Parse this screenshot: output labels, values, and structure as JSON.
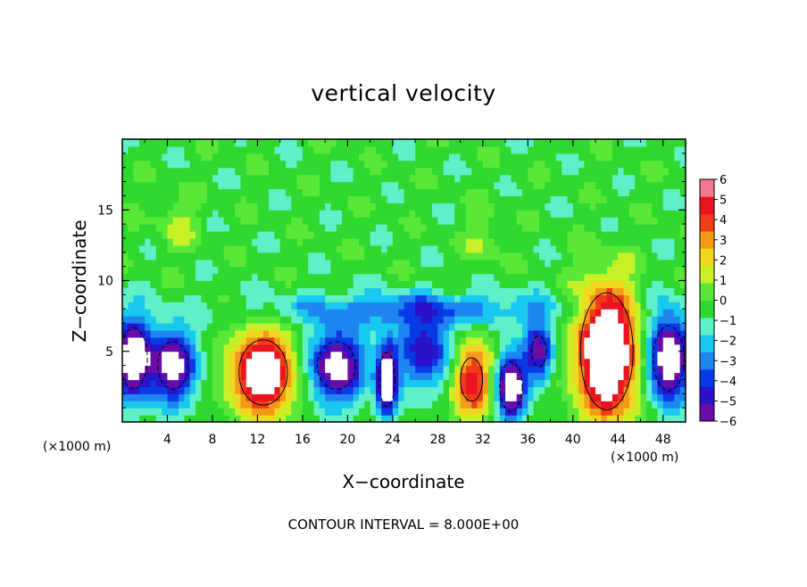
{
  "chart_data": {
    "type": "heatmap",
    "title": "vertical velocity",
    "xlabel": "X−coordinate",
    "ylabel": "Z−coordinate",
    "x_unit": "(×1000 m)",
    "y_unit": "(×1000 m)",
    "xlim": [
      0,
      50
    ],
    "ylim": [
      0,
      20
    ],
    "x_ticks": [
      4,
      8,
      12,
      16,
      20,
      24,
      28,
      32,
      36,
      40,
      44,
      48
    ],
    "x_tick_labels": [
      "4",
      "8",
      "12",
      "16",
      "20",
      "24",
      "28",
      "32",
      "36",
      "40",
      "44",
      "48"
    ],
    "y_ticks": [
      5,
      10,
      15
    ],
    "y_tick_labels": [
      "5",
      "10",
      "15"
    ],
    "colorbar": {
      "min": -6,
      "max": 6,
      "tick_labels": [
        "6",
        "5",
        "4",
        "3",
        "2",
        "1",
        "0",
        "−1",
        "−2",
        "−3",
        "−4",
        "−5",
        "−6"
      ],
      "colors": [
        "#6a0da8",
        "#2a12c8",
        "#0a3ae6",
        "#1e86f0",
        "#18c8ee",
        "#5ff0c8",
        "#2ed82e",
        "#5ae838",
        "#c8f026",
        "#f0d820",
        "#f59a18",
        "#f03c18",
        "#ea1420",
        "#f07890"
      ]
    },
    "background_color": "#3ee03a",
    "features": [
      {
        "kind": "updraft",
        "x": 12.5,
        "z": 3.5,
        "peak": 8,
        "rx": 2.8,
        "rz": 3.0
      },
      {
        "kind": "updraft",
        "x": 31,
        "z": 3.0,
        "peak": 6,
        "rx": 1.8,
        "rz": 2.8
      },
      {
        "kind": "updraft",
        "x": 43,
        "z": 5.0,
        "peak": 10,
        "rx": 2.6,
        "rz": 4.6
      },
      {
        "kind": "updraft",
        "x": 5,
        "z": 14,
        "peak": 1.5,
        "rx": 2.0,
        "rz": 2.0
      },
      {
        "kind": "updraft",
        "x": 32,
        "z": 13,
        "peak": 1.5,
        "rx": 1.5,
        "rz": 2.0
      },
      {
        "kind": "downdraft",
        "x": 1,
        "z": 4.5,
        "peak": -8,
        "rx": 1.6,
        "rz": 2.8
      },
      {
        "kind": "downdraft",
        "x": 4.5,
        "z": 4.0,
        "peak": -7,
        "rx": 2.0,
        "rz": 2.5
      },
      {
        "kind": "downdraft",
        "x": 19,
        "z": 4.0,
        "peak": -7,
        "rx": 2.5,
        "rz": 2.5
      },
      {
        "kind": "downdraft",
        "x": 23.5,
        "z": 3.0,
        "peak": -8,
        "rx": 0.9,
        "rz": 2.5
      },
      {
        "kind": "downdraft",
        "x": 27,
        "z": 5.0,
        "peak": -5,
        "rx": 2.5,
        "rz": 2.5
      },
      {
        "kind": "downdraft",
        "x": 34.5,
        "z": 2.5,
        "peak": -8,
        "rx": 1.3,
        "rz": 2.3
      },
      {
        "kind": "downdraft",
        "x": 37,
        "z": 5.0,
        "peak": -6,
        "rx": 1.2,
        "rz": 2.0
      },
      {
        "kind": "downdraft",
        "x": 48.5,
        "z": 4.5,
        "peak": -8,
        "rx": 1.8,
        "rz": 3.0
      },
      {
        "kind": "downdraft",
        "x": 26,
        "z": 8.0,
        "peak": -3,
        "rx": 14.0,
        "rz": 1.2
      }
    ],
    "annotation": "CONTOUR INTERVAL = 8.000E+00",
    "grid": false
  }
}
